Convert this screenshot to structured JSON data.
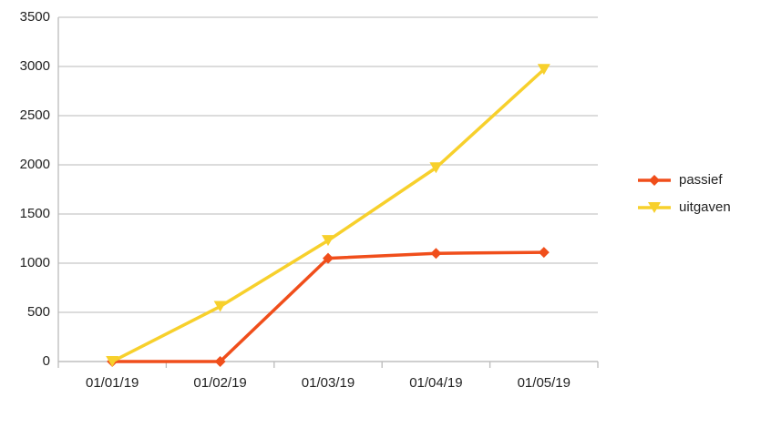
{
  "chart_data": {
    "type": "line",
    "categories": [
      "01/01/19",
      "01/02/19",
      "01/03/19",
      "01/04/19",
      "01/05/19"
    ],
    "series": [
      {
        "name": "passief",
        "color": "#f04e1b",
        "marker": "diamond",
        "values": [
          0,
          0,
          1050,
          1100,
          1110
        ]
      },
      {
        "name": "uitgaven",
        "color": "#f7d02c",
        "marker": "triangle-down",
        "values": [
          0,
          560,
          1230,
          1970,
          2970
        ]
      }
    ],
    "ylim": [
      0,
      3500
    ],
    "yticks": [
      0,
      500,
      1000,
      1500,
      2000,
      2500,
      3000,
      3500
    ],
    "grid": true,
    "legend": "right"
  }
}
